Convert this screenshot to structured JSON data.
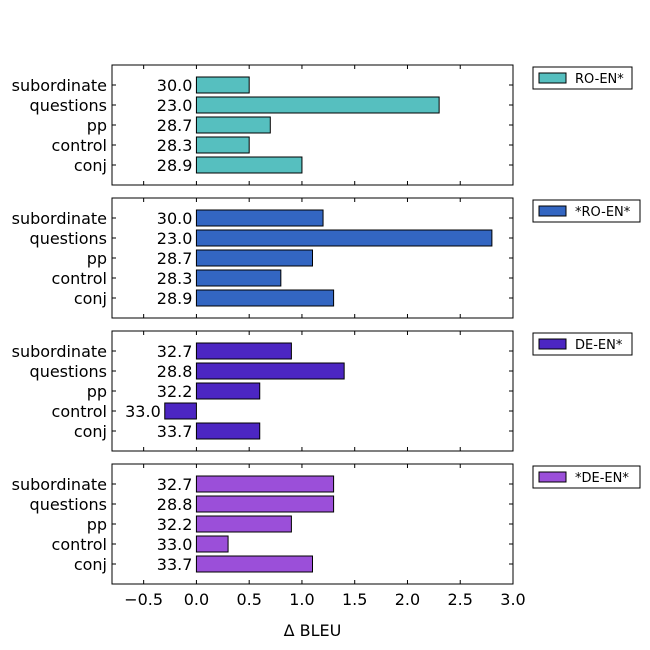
{
  "chart_data": {
    "type": "bar",
    "orientation": "horizontal",
    "xlabel": "Δ BLEU",
    "xlim": [
      -0.8,
      3.0
    ],
    "xticks": [
      "−0.5",
      "0.0",
      "0.5",
      "1.0",
      "1.5",
      "2.0",
      "2.5",
      "3.0"
    ],
    "xtick_values": [
      -0.5,
      0.0,
      0.5,
      1.0,
      1.5,
      2.0,
      2.5,
      3.0
    ],
    "categories": [
      "subordinate",
      "questions",
      "pp",
      "control",
      "conj"
    ],
    "legend_position": "right-of-each-panel",
    "panels": [
      {
        "name": "RO-EN*",
        "color": "#56bfbf",
        "values": [
          0.5,
          2.3,
          0.7,
          0.5,
          1.0
        ],
        "labels": [
          "30.0",
          "23.0",
          "28.7",
          "28.3",
          "28.9"
        ]
      },
      {
        "name": "*RO-EN*",
        "color": "#3366c2",
        "values": [
          1.2,
          2.8,
          1.1,
          0.8,
          1.3
        ],
        "labels": [
          "30.0",
          "23.0",
          "28.7",
          "28.3",
          "28.9"
        ]
      },
      {
        "name": "DE-EN*",
        "color": "#4c26c2",
        "values": [
          0.9,
          1.4,
          0.6,
          -0.3,
          0.6
        ],
        "labels": [
          "32.7",
          "28.8",
          "32.2",
          "33.0",
          "33.7"
        ]
      },
      {
        "name": "*DE-EN*",
        "color": "#9b4fd9",
        "values": [
          1.3,
          1.3,
          0.9,
          0.3,
          1.1
        ],
        "labels": [
          "32.7",
          "28.8",
          "32.2",
          "33.0",
          "33.7"
        ]
      }
    ]
  }
}
